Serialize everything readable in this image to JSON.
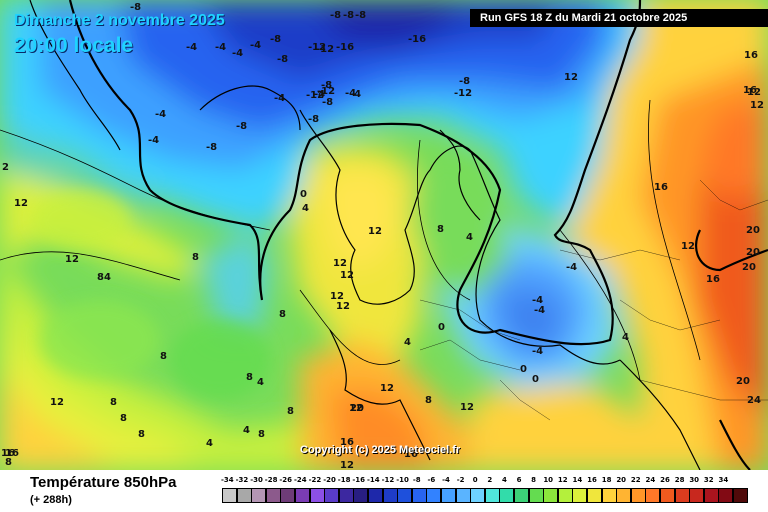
{
  "header": {
    "date_line": "Dimanche 2 novembre 2025",
    "time_line": "20:00 locale",
    "run_info": "Run GFS 18 Z du Mardi 21 octobre 2025"
  },
  "map": {
    "copyright": "Copyright (c) 2025 Meteociel.fr",
    "isotherm_labels": [
      {
        "text": "-8"
      },
      {
        "text": "-8"
      },
      {
        "text": "-8"
      },
      {
        "text": "-8"
      },
      {
        "text": "-4"
      },
      {
        "text": "-4"
      },
      {
        "text": "-8"
      },
      {
        "text": "-12"
      },
      {
        "text": "-16"
      },
      {
        "text": "-16"
      },
      {
        "text": "-4"
      },
      {
        "text": "-4"
      },
      {
        "text": "-8"
      },
      {
        "text": "-4"
      },
      {
        "text": "-12"
      },
      {
        "text": "-12"
      },
      {
        "text": "-8"
      },
      {
        "text": "-4"
      },
      {
        "text": "-8"
      },
      {
        "text": "-8"
      },
      {
        "text": "-12"
      },
      {
        "text": "-4"
      },
      {
        "text": "-4"
      },
      {
        "text": "-8"
      },
      {
        "text": "-8"
      },
      {
        "text": "-4"
      },
      {
        "text": "-8"
      },
      {
        "text": "12"
      },
      {
        "text": "-4"
      },
      {
        "text": "16"
      },
      {
        "text": "16"
      },
      {
        "text": "12"
      },
      {
        "text": "12"
      },
      {
        "text": "2"
      },
      {
        "text": "12"
      },
      {
        "text": "0"
      },
      {
        "text": "4"
      },
      {
        "text": "12"
      },
      {
        "text": "12"
      },
      {
        "text": "12"
      },
      {
        "text": "12"
      },
      {
        "text": "12"
      },
      {
        "text": "8"
      },
      {
        "text": "4"
      },
      {
        "text": "8"
      },
      {
        "text": "8"
      },
      {
        "text": "4"
      },
      {
        "text": "-4"
      },
      {
        "text": "-4"
      },
      {
        "text": "-4"
      },
      {
        "text": "0"
      },
      {
        "text": "0"
      },
      {
        "text": "4"
      },
      {
        "text": "-4"
      },
      {
        "text": "4"
      },
      {
        "text": "0"
      },
      {
        "text": "16"
      },
      {
        "text": "12"
      },
      {
        "text": "20"
      },
      {
        "text": "20"
      },
      {
        "text": "20"
      },
      {
        "text": "16"
      },
      {
        "text": "20"
      },
      {
        "text": "24"
      },
      {
        "text": "12"
      },
      {
        "text": "12"
      },
      {
        "text": "8"
      },
      {
        "text": "8"
      },
      {
        "text": "8"
      },
      {
        "text": "4"
      },
      {
        "text": "4"
      },
      {
        "text": "4"
      },
      {
        "text": "8"
      },
      {
        "text": "8"
      },
      {
        "text": "8"
      },
      {
        "text": "12"
      },
      {
        "text": "12"
      },
      {
        "text": "12"
      },
      {
        "text": "16"
      },
      {
        "text": "8"
      },
      {
        "text": "8"
      },
      {
        "text": "8"
      },
      {
        "text": "12"
      },
      {
        "text": "16"
      },
      {
        "text": "20"
      },
      {
        "text": "16"
      },
      {
        "text": "16"
      },
      {
        "text": "8"
      },
      {
        "text": "-12"
      }
    ]
  },
  "footer": {
    "parameter": "Température 850hPa",
    "lead_time": "(+ 288h)"
  },
  "legend": {
    "ticks": [
      "-34",
      "-32",
      "-30",
      "-28",
      "-26",
      "-24",
      "-22",
      "-20",
      "-18",
      "-16",
      "-14",
      "-12",
      "-10",
      "-8",
      "-6",
      "-4",
      "-2",
      "0",
      "2",
      "4",
      "6",
      "8",
      "10",
      "12",
      "14",
      "16",
      "18",
      "20",
      "22",
      "24",
      "26",
      "28",
      "30",
      "32",
      "34"
    ],
    "colors": [
      "#c8c8c8",
      "#a8a8a8",
      "#b496b4",
      "#8c5a8c",
      "#6e3c78",
      "#7a3cb4",
      "#8c50e6",
      "#5a3cc8",
      "#3c28a0",
      "#281e82",
      "#1e28aa",
      "#1e3cc8",
      "#1e50dc",
      "#2864f0",
      "#3282ff",
      "#46a0ff",
      "#5ab4ff",
      "#6ed2ff",
      "#50e6dc",
      "#32dcaa",
      "#3cd278",
      "#64dc50",
      "#8ce63c",
      "#b4f03c",
      "#dcf03c",
      "#f0e63c",
      "#ffd23c",
      "#ffb432",
      "#ff9628",
      "#ff7828",
      "#f05a1e",
      "#dc3c1e",
      "#c8281e",
      "#aa141e",
      "#820a14",
      "#500a0a"
    ]
  }
}
